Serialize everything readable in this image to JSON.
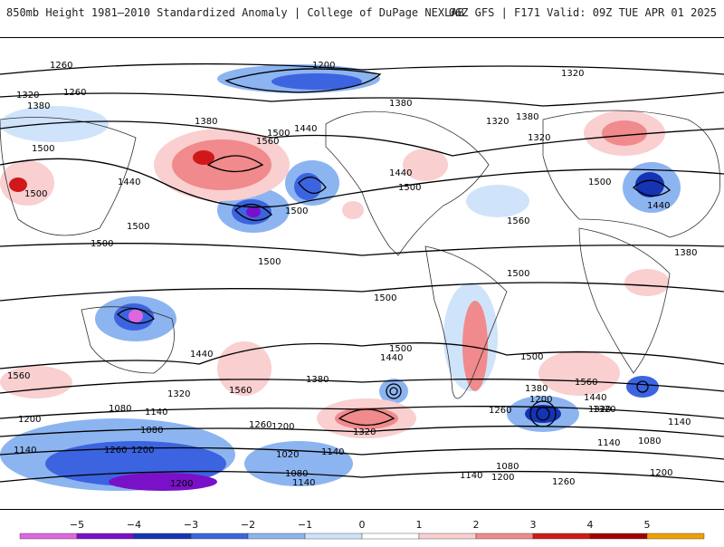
{
  "header": {
    "left_title": "850mb Height 1981–2010 Standardized Anomaly | College of DuPage NEXLAB",
    "right_title": "06Z GFS | F171 Valid: 09Z TUE APR 01 2025"
  },
  "map": {
    "contour_labels": [
      "1260",
      "1200",
      "1320",
      "1320",
      "1260",
      "1380",
      "1380",
      "1380",
      "1440",
      "1500",
      "1500",
      "1560",
      "1380",
      "1320",
      "1320",
      "1500",
      "1440",
      "1500",
      "1500",
      "1440",
      "1500",
      "1560",
      "1500",
      "1440",
      "1500",
      "1500",
      "1500",
      "1440",
      "1500",
      "1380",
      "1560",
      "1500",
      "1440",
      "1560",
      "1380",
      "1320",
      "1320",
      "1260",
      "1500",
      "1380",
      "1200",
      "1320",
      "1260",
      "1200",
      "1560",
      "1440",
      "1320",
      "1080",
      "1140",
      "1200",
      "1080",
      "1140",
      "1260",
      "1200",
      "1140",
      "1020",
      "1080",
      "1140",
      "1200",
      "1140",
      "1080",
      "1200",
      "1140",
      "1260",
      "1080",
      "1140",
      "1200"
    ]
  },
  "colorbar": {
    "labels": [
      "−5",
      "−4",
      "−3",
      "−2",
      "−1",
      "0",
      "1",
      "2",
      "3",
      "4",
      "5"
    ],
    "colors": [
      "#e066e0",
      "#7a10c8",
      "#1434b4",
      "#3c64e0",
      "#8cb4f0",
      "#cfe3fb",
      "#ffffff",
      "#f9cfd0",
      "#f08a8c",
      "#d01818",
      "#a00000",
      "#f0a000"
    ]
  }
}
